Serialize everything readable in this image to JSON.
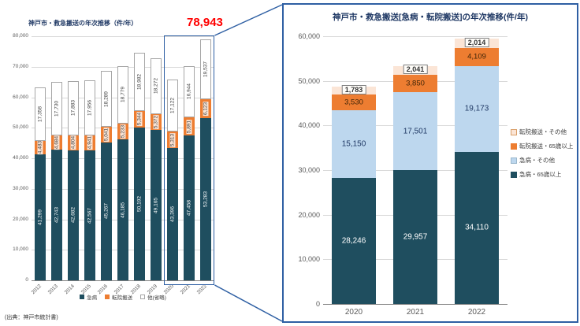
{
  "colors": {
    "navy": "#1f4e5f",
    "orange": "#ed7d31",
    "peach": "#fbe5d6",
    "lightblue": "#bdd7ee",
    "grid": "#d9d9d9",
    "axis_text": "#595959",
    "title_text": "#1f3864",
    "callout_blue": "#2e5fa3",
    "highlight_red": "#ff0000",
    "other_bar_fill": "#ffffff",
    "other_bar_border": "#a6a6a6"
  },
  "left_chart": {
    "title": "神戸市・救急搬送の年次推移（件/年）",
    "annotation_total": "78,943",
    "source": "(出典：神戸市統計書)"
  },
  "right_chart": {
    "title": "神戸市・救急搬送[急病・転院搬送]の年次推移(件/年)"
  },
  "chart_data": [
    {
      "type": "bar",
      "stacked": true,
      "title": "神戸市・救急搬送の年次推移（件/年）",
      "categories": [
        "2012",
        "2013",
        "2014",
        "2015",
        "2016",
        "2017",
        "2018",
        "2019",
        "2020",
        "2021",
        "2022"
      ],
      "series": [
        {
          "name": "急病",
          "color": "#1f4e5f",
          "values": [
            41299,
            42743,
            42682,
            42567,
            45267,
            46185,
            50192,
            49165,
            43396,
            47458,
            53283
          ]
        },
        {
          "name": "転院搬送",
          "color": "#ed7d31",
          "values": [
            4483,
            4684,
            4804,
            4941,
            5041,
            5233,
            5344,
            5372,
            5313,
            5891,
            6123
          ]
        },
        {
          "name": "他(省略)",
          "color": "#ffffff",
          "values": [
            17358,
            17730,
            17883,
            17956,
            18289,
            18779,
            18982,
            18272,
            17122,
            16944,
            19537
          ]
        }
      ],
      "ylim": [
        0,
        80000
      ],
      "y_tick_step": 10000,
      "annotation": "78,943",
      "legend_position": "bottom",
      "source": "(出典：神戸市統計書)"
    },
    {
      "type": "bar",
      "stacked": true,
      "title": "神戸市・救急搬送[急病・転院搬送]の年次推移(件/年)",
      "categories": [
        "2020",
        "2021",
        "2022"
      ],
      "series": [
        {
          "name": "急病・65歳以上",
          "color": "#1f4e5f",
          "values": [
            28246,
            29957,
            34110
          ]
        },
        {
          "name": "急病・その他",
          "color": "#bdd7ee",
          "values": [
            15150,
            17501,
            19173
          ]
        },
        {
          "name": "転院搬送・65歳以上",
          "color": "#ed7d31",
          "values": [
            3530,
            3850,
            4109
          ]
        },
        {
          "name": "転院搬送・その他",
          "color": "#fbe5d6",
          "values": [
            1783,
            2041,
            2014
          ]
        }
      ],
      "ylim": [
        0,
        60000
      ],
      "y_tick_step": 10000,
      "legend_position": "right"
    }
  ]
}
